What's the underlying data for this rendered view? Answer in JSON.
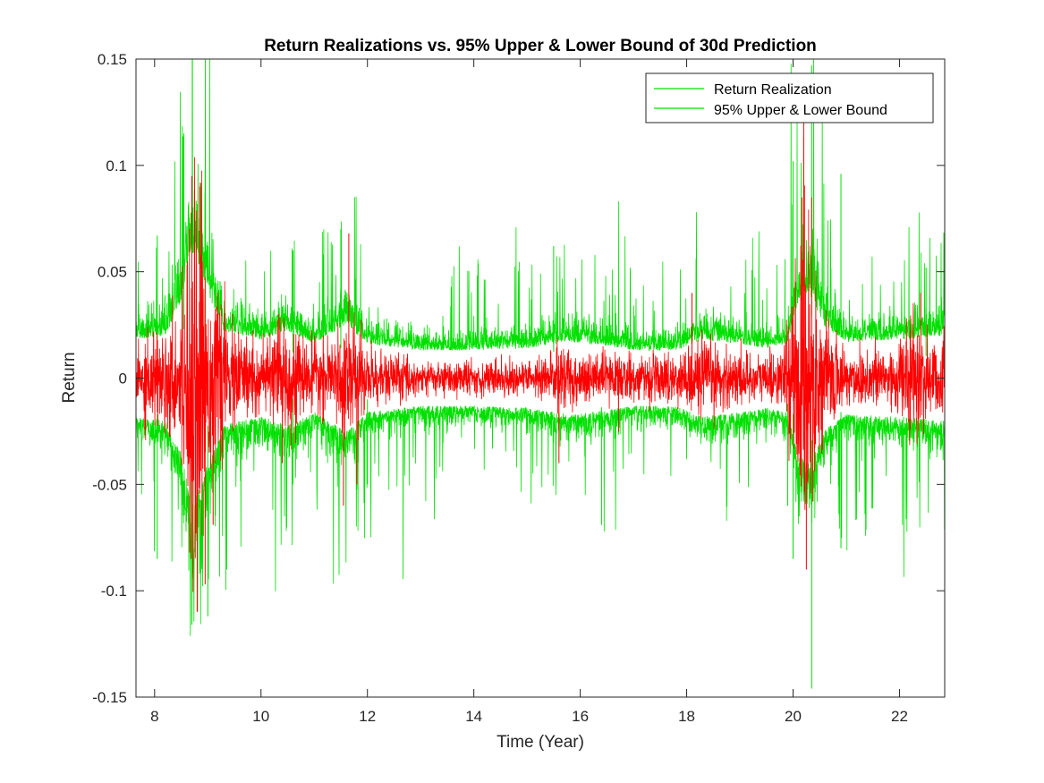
{
  "chart_data": {
    "type": "line",
    "title": "Return Realizations vs. 95% Upper & Lower Bound of 30d Prediction",
    "xlabel": "Time (Year)",
    "ylabel": "Return",
    "xlim": [
      7.65,
      22.85
    ],
    "ylim": [
      -0.15,
      0.15
    ],
    "xticks": [
      8,
      10,
      12,
      14,
      16,
      18,
      20,
      22
    ],
    "xtick_labels": [
      "8",
      "10",
      "12",
      "14",
      "16",
      "18",
      "20",
      "22"
    ],
    "yticks": [
      -0.15,
      -0.1,
      -0.05,
      0,
      0.05,
      0.1,
      0.15
    ],
    "ytick_labels": [
      "-0.15",
      "-0.1",
      "-0.05",
      "0",
      "0.05",
      "0.1",
      "0.15"
    ],
    "grid": false,
    "legend_position": "top-right",
    "series": [
      {
        "name": "Return Realization",
        "color": "#ff0000",
        "legend_color": "#00e000",
        "volatility_envelope": [
          [
            7.65,
            0.01
          ],
          [
            8.0,
            0.011
          ],
          [
            8.4,
            0.014
          ],
          [
            8.6,
            0.03
          ],
          [
            8.75,
            0.045
          ],
          [
            8.9,
            0.035
          ],
          [
            9.1,
            0.02
          ],
          [
            9.5,
            0.011
          ],
          [
            10.2,
            0.009
          ],
          [
            10.5,
            0.013
          ],
          [
            10.8,
            0.008
          ],
          [
            11.4,
            0.008
          ],
          [
            11.6,
            0.014
          ],
          [
            11.8,
            0.012
          ],
          [
            12.0,
            0.007
          ],
          [
            13.0,
            0.004
          ],
          [
            14.0,
            0.004
          ],
          [
            15.0,
            0.004
          ],
          [
            15.5,
            0.006
          ],
          [
            15.8,
            0.008
          ],
          [
            16.0,
            0.006
          ],
          [
            17.0,
            0.005
          ],
          [
            18.0,
            0.006
          ],
          [
            18.2,
            0.01
          ],
          [
            18.5,
            0.008
          ],
          [
            19.0,
            0.006
          ],
          [
            19.8,
            0.006
          ],
          [
            20.0,
            0.02
          ],
          [
            20.25,
            0.035
          ],
          [
            20.5,
            0.014
          ],
          [
            21.0,
            0.007
          ],
          [
            21.8,
            0.008
          ],
          [
            22.2,
            0.012
          ],
          [
            22.85,
            0.01
          ]
        ],
        "spikes": [
          [
            8.7,
            0.095
          ],
          [
            8.8,
            -0.11
          ],
          [
            8.95,
            -0.097
          ],
          [
            9.1,
            -0.069
          ],
          [
            8.85,
            0.09
          ],
          [
            10.4,
            -0.04
          ],
          [
            11.55,
            -0.06
          ],
          [
            11.65,
            0.068
          ],
          [
            11.8,
            -0.05
          ],
          [
            15.6,
            -0.04
          ],
          [
            18.1,
            0.04
          ],
          [
            20.2,
            0.12
          ],
          [
            20.25,
            -0.09
          ],
          [
            20.35,
            0.085
          ],
          [
            22.4,
            0.04
          ]
        ]
      },
      {
        "name": "95% Upper & Lower Bound",
        "color": "#00e000",
        "bound_level": [
          [
            7.65,
            0.018
          ],
          [
            8.2,
            0.02
          ],
          [
            8.5,
            0.035
          ],
          [
            8.7,
            0.06
          ],
          [
            8.85,
            0.05
          ],
          [
            9.0,
            0.04
          ],
          [
            9.3,
            0.022
          ],
          [
            10.0,
            0.018
          ],
          [
            10.5,
            0.022
          ],
          [
            11.0,
            0.016
          ],
          [
            11.6,
            0.025
          ],
          [
            12.0,
            0.016
          ],
          [
            13.0,
            0.013
          ],
          [
            14.0,
            0.013
          ],
          [
            15.0,
            0.014
          ],
          [
            15.8,
            0.017
          ],
          [
            16.5,
            0.015
          ],
          [
            17.0,
            0.013
          ],
          [
            17.8,
            0.013
          ],
          [
            18.3,
            0.018
          ],
          [
            19.0,
            0.016
          ],
          [
            19.5,
            0.014
          ],
          [
            19.9,
            0.016
          ],
          [
            20.1,
            0.035
          ],
          [
            20.3,
            0.04
          ],
          [
            20.6,
            0.024
          ],
          [
            21.0,
            0.017
          ],
          [
            22.0,
            0.018
          ],
          [
            22.85,
            0.02
          ]
        ],
        "spikes": [
          [
            8.55,
            0.115
          ],
          [
            8.7,
            -0.116
          ],
          [
            8.95,
            0.098
          ],
          [
            9.0,
            -0.112
          ],
          [
            8.05,
            0.067
          ],
          [
            8.05,
            -0.085
          ],
          [
            10.6,
            0.06
          ],
          [
            10.6,
            -0.05
          ],
          [
            11.5,
            0.07
          ],
          [
            12.0,
            -0.05
          ],
          [
            15.5,
            0.062
          ],
          [
            16.4,
            -0.069
          ],
          [
            20.0,
            0.102
          ],
          [
            20.0,
            -0.085
          ],
          [
            20.35,
            0.147
          ],
          [
            20.35,
            -0.146
          ],
          [
            20.9,
            0.096
          ],
          [
            20.9,
            -0.08
          ],
          [
            19.9,
            -0.06
          ],
          [
            22.5,
            0.052
          ]
        ]
      }
    ]
  }
}
